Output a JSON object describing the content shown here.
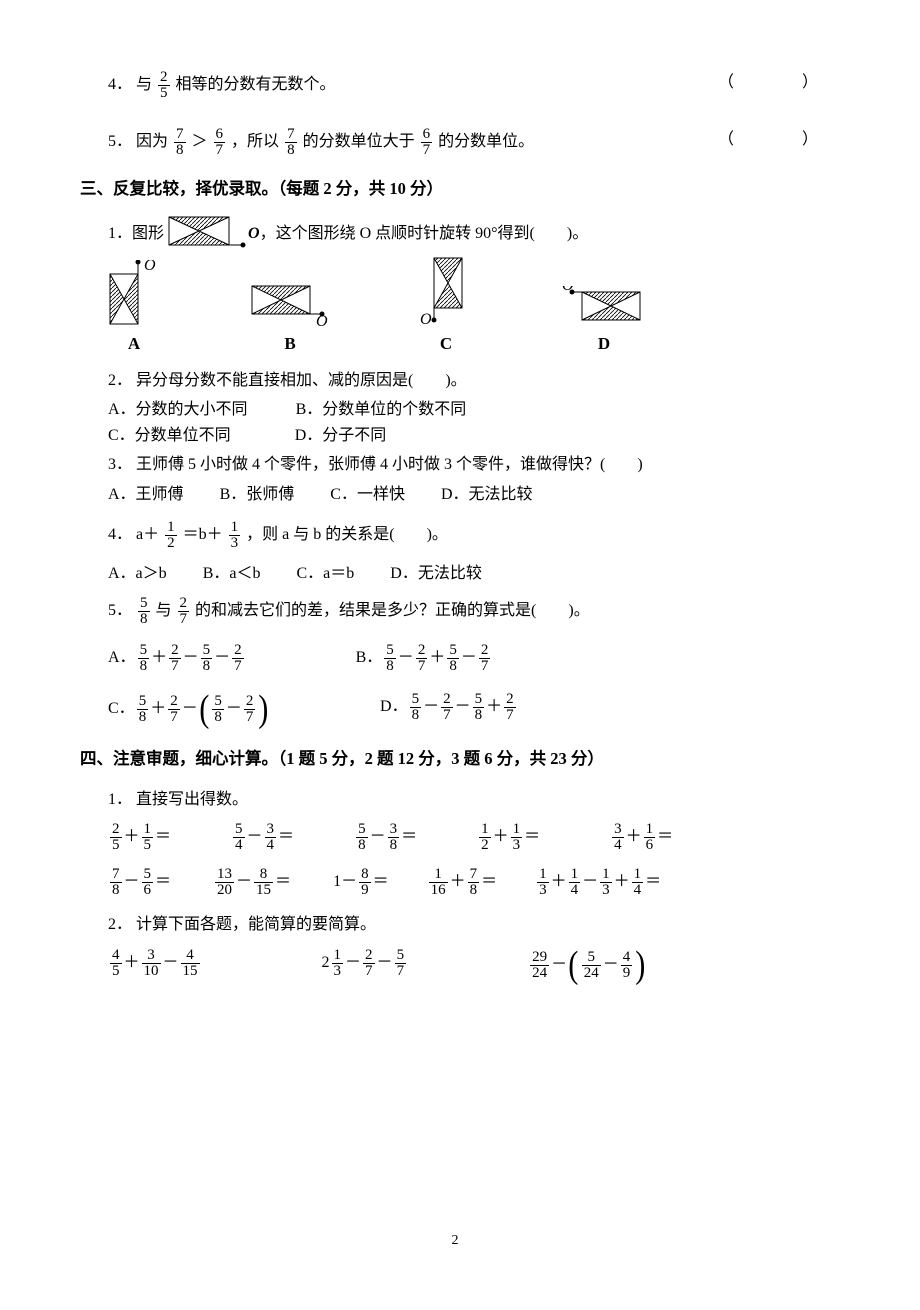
{
  "q2_4": {
    "num": "4．",
    "text_a": "与",
    "f1n": "2",
    "f1d": "5",
    "text_b": "相等的分数有无数个。",
    "paren": "（　　）"
  },
  "q2_5": {
    "num": "5．",
    "a": "因为",
    "f1n": "7",
    "f1d": "8",
    "gt": "＞",
    "f2n": "6",
    "f2d": "7",
    "b": "，所以",
    "f3n": "7",
    "f3d": "8",
    "c": "的分数单位大于",
    "f4n": "6",
    "f4d": "7",
    "d": "的分数单位。",
    "paren": "（　　）"
  },
  "sec3": "三、反复比较，择优录取。（每题 2 分，共 10 分）",
  "q3_1": {
    "num": "1．",
    "a": "图形",
    "b": "，这个图形绕 O 点顺时针旋转 90°得到(　　)。",
    "o_glyph": "O",
    "labels": [
      "A",
      "B",
      "C",
      "D"
    ]
  },
  "q3_2": {
    "num": "2．",
    "stem": "异分母分数不能直接相加、减的原因是(　　)。",
    "a": "A．分数的大小不同",
    "b": "B．分数单位的个数不同",
    "c": "C．分数单位不同",
    "d": "D．分子不同"
  },
  "q3_3": {
    "num": "3．",
    "stem": "王师傅 5 小时做 4 个零件，张师傅 4 小时做 3 个零件，谁做得快？(　　)",
    "a": "A．王师傅",
    "b": "B．张师傅",
    "c": "C．一样快",
    "d": "D．无法比较"
  },
  "q3_4": {
    "num": "4．",
    "a": "a＋",
    "f1n": "1",
    "f1d": "2",
    "b": "＝b＋",
    "f2n": "1",
    "f2d": "3",
    "c": "，则 a 与 b 的关系是(　　)。",
    "optA": "A．a＞b",
    "optB": "B．a＜b",
    "optC": "C．a＝b",
    "optD": "D．无法比较"
  },
  "q3_5": {
    "num": "5．",
    "f1n": "5",
    "f1d": "8",
    "and": "与",
    "f2n": "2",
    "f2d": "7",
    "stem": "的和减去它们的差，结果是多少？正确的算式是(　　)。",
    "A": "A．",
    "B": "B．",
    "C": "C．",
    "D": "D．",
    "sA": {
      "t": [
        [
          "5",
          "8"
        ],
        "＋",
        [
          "2",
          "7"
        ],
        "－",
        [
          "5",
          "8"
        ],
        "－",
        [
          "2",
          "7"
        ]
      ]
    },
    "sB": {
      "t": [
        [
          "5",
          "8"
        ],
        "－",
        [
          "2",
          "7"
        ],
        "＋",
        [
          "5",
          "8"
        ],
        "－",
        [
          "2",
          "7"
        ]
      ]
    },
    "sC": {
      "a": [
        [
          "5",
          "8"
        ],
        "＋",
        [
          "2",
          "7"
        ],
        "－"
      ],
      "p": [
        [
          "5",
          "8"
        ],
        "－",
        [
          "2",
          "7"
        ]
      ]
    },
    "sD": {
      "t": [
        [
          "5",
          "8"
        ],
        "－",
        [
          "2",
          "7"
        ],
        "－",
        [
          "5",
          "8"
        ],
        "＋",
        [
          "2",
          "7"
        ]
      ]
    }
  },
  "sec4": "四、注意审题，细心计算。（1 题 5 分，2 题 12 分，3 题 6 分，共 23 分）",
  "q4_1": {
    "num": "1．",
    "stem": "直接写出得数。",
    "row1": [
      [
        [
          "2",
          "5"
        ],
        "＋",
        [
          "1",
          "5"
        ],
        "＝"
      ],
      [
        [
          "5",
          "4"
        ],
        "－",
        [
          "3",
          "4"
        ],
        "＝"
      ],
      [
        [
          "5",
          "8"
        ],
        "－",
        [
          "3",
          "8"
        ],
        "＝"
      ],
      [
        [
          "1",
          "2"
        ],
        "＋",
        [
          "1",
          "3"
        ],
        "＝"
      ],
      [
        [
          "3",
          "4"
        ],
        "＋",
        [
          "1",
          "6"
        ],
        "＝"
      ]
    ],
    "row2": [
      [
        [
          "7",
          "8"
        ],
        "－",
        [
          "5",
          "6"
        ],
        "＝"
      ],
      [
        [
          "13",
          "20"
        ],
        "－",
        [
          "8",
          "15"
        ],
        "＝"
      ],
      [
        "1",
        "－",
        [
          "8",
          "9"
        ],
        "＝"
      ],
      [
        [
          "1",
          "16"
        ],
        "＋",
        [
          "7",
          "8"
        ],
        "＝"
      ],
      [
        [
          "1",
          "3"
        ],
        "＋",
        [
          "1",
          "4"
        ],
        "－",
        [
          "1",
          "3"
        ],
        "＋",
        [
          "1",
          "4"
        ],
        "＝"
      ]
    ]
  },
  "q4_2": {
    "num": "2．",
    "stem": "计算下面各题，能简算的要简算。",
    "row": [
      [
        [
          "4",
          "5"
        ],
        "＋",
        [
          "3",
          "10"
        ],
        "－",
        [
          "4",
          "15"
        ]
      ],
      [
        "2",
        [
          "1",
          "3"
        ],
        "－",
        [
          "2",
          "7"
        ],
        "－",
        [
          "5",
          "7"
        ]
      ],
      {
        "lead": [
          [
            "29",
            "24"
          ],
          "－"
        ],
        "p": [
          [
            "5",
            "24"
          ],
          "－",
          [
            "4",
            "9"
          ]
        ]
      }
    ]
  },
  "pagenum": "2"
}
